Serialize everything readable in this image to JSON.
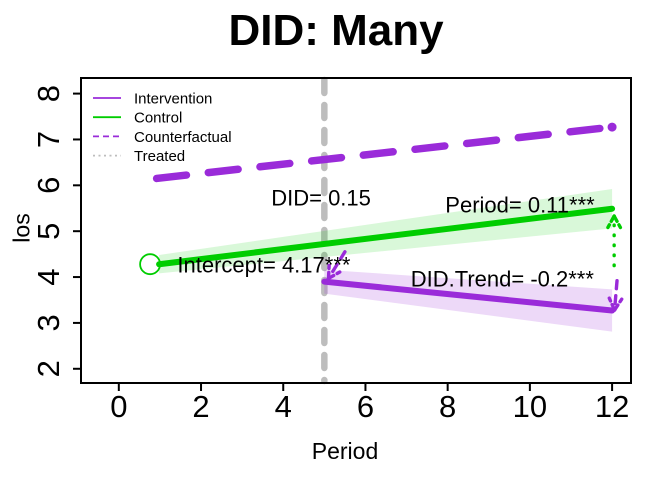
{
  "chart_data": {
    "type": "line",
    "title": "DID: Many",
    "xlabel": "Period",
    "ylabel": "los",
    "xlim": [
      -0.92,
      12.46
    ],
    "ylim": [
      1.69,
      8.34
    ],
    "x_ticks": [
      0,
      2,
      4,
      6,
      8,
      10,
      12
    ],
    "y_ticks": [
      2,
      3,
      4,
      5,
      6,
      7,
      8
    ],
    "grid": false,
    "treatment_time": 5,
    "colors": {
      "intervention": "#9A2BD9",
      "control": "#00CD00",
      "counterfactual": "#9A2BD9",
      "treated": "#BDBDBD",
      "control_band": "rgba(0,205,0,0.15)",
      "intervention_band": "rgba(154,43,217,0.18)",
      "text": "#000000"
    },
    "series": [
      {
        "name": "Counterfactual",
        "style": "dashed",
        "color_key": "counterfactual",
        "width": 7.5,
        "points": [
          [
            0.92,
            6.15
          ],
          [
            12,
            7.27
          ]
        ]
      },
      {
        "name": "Control",
        "style": "solid",
        "color_key": "control",
        "width": 6,
        "points": [
          [
            0.98,
            4.28
          ],
          [
            12,
            5.49
          ]
        ],
        "band": [
          0.2,
          0.43
        ],
        "marker_start": true
      },
      {
        "name": "Intervention",
        "style": "solid",
        "color_key": "intervention",
        "width": 6,
        "points": [
          [
            5,
            3.9
          ],
          [
            12,
            3.27
          ]
        ],
        "band": [
          0.26,
          0.46
        ]
      }
    ],
    "annotations": [
      {
        "text": "DID= 0.15",
        "x": 4.92,
        "y": 5.73
      },
      {
        "text": "Intercept= 4.17***",
        "x": 3.53,
        "y": 4.27
      },
      {
        "text": "Period= 0.11***",
        "x": 9.76,
        "y": 5.58
      },
      {
        "text": "DID.Trend= -0.2***",
        "x": 9.33,
        "y": 3.97
      }
    ],
    "arrows": [
      {
        "color_key": "control",
        "style": "dotted",
        "x1": 12.05,
        "y1": 4.25,
        "x2": 12.05,
        "y2": 5.33
      },
      {
        "color_key": "intervention",
        "style": "dashed",
        "x1": 12.12,
        "y1": 3.92,
        "x2": 12.06,
        "y2": 3.28
      },
      {
        "color_key": "intervention",
        "style": "dashed",
        "x1": 5.5,
        "y1": 4.55,
        "x2": 5.1,
        "y2": 3.97
      }
    ],
    "legend": {
      "position": "topleft",
      "items": [
        {
          "label": "Intervention",
          "style": "solid",
          "color_key": "intervention"
        },
        {
          "label": "Control",
          "style": "solid",
          "color_key": "control"
        },
        {
          "label": "Counterfactual",
          "style": "dashed",
          "color_key": "counterfactual"
        },
        {
          "label": "Treated",
          "style": "dotted",
          "color_key": "treated"
        }
      ]
    }
  }
}
